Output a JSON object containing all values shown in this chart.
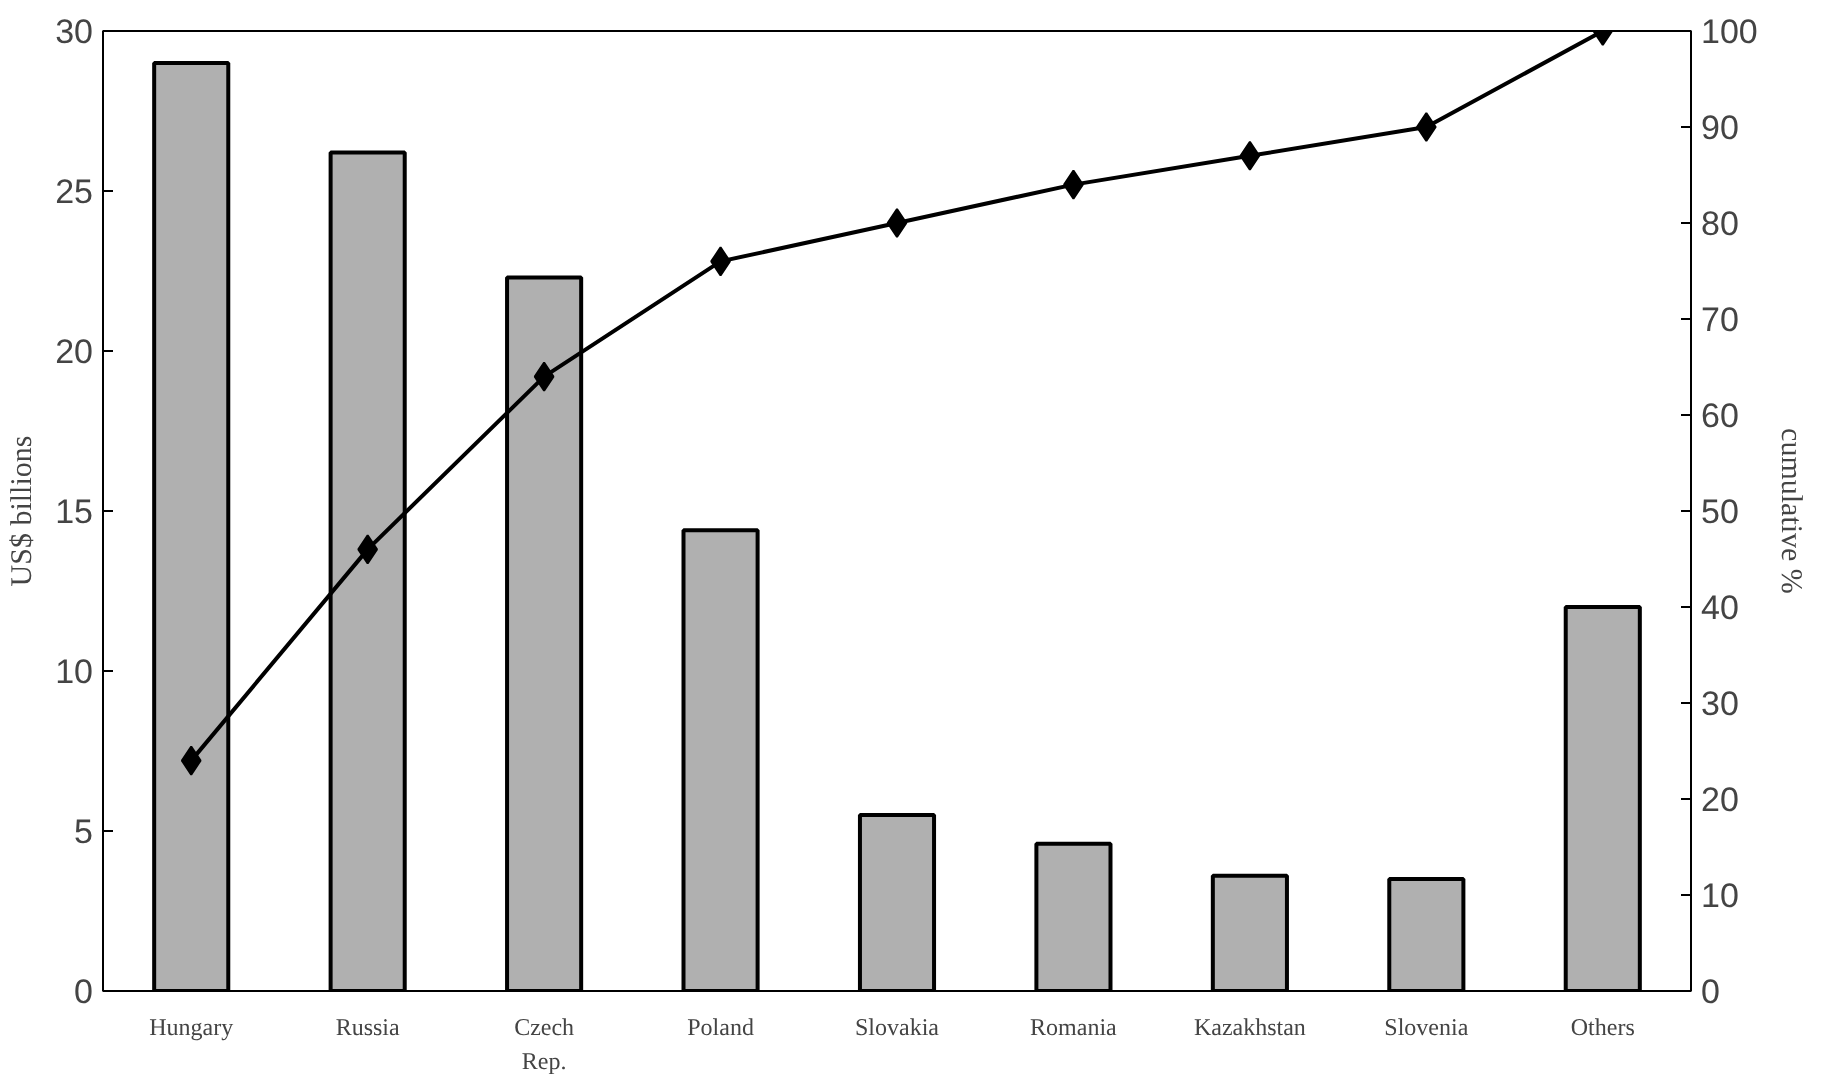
{
  "chart_data": {
    "type": "bar",
    "ylabel": "US$ billions",
    "y2label": "cumulative %",
    "categories": [
      "Hungary",
      "Russia",
      "Czech Rep.",
      "Poland",
      "Slovakia",
      "Romania",
      "Kazakhstan",
      "Slovenia",
      "Others"
    ],
    "series": [
      {
        "color": "#b0b0b0",
        "values": [
          29.0,
          26.2,
          22.3,
          14.4,
          5.5,
          4.6,
          3.6,
          3.5,
          12.0
        ]
      },
      {
        "type": "line",
        "axis": "y2",
        "color": "#000000",
        "marker": "diamond",
        "values": [
          24,
          46,
          64,
          76,
          80,
          84,
          87,
          90,
          100
        ]
      }
    ],
    "ylim": [
      0,
      30
    ],
    "yticks": [
      0,
      5,
      10,
      15,
      20,
      25,
      30
    ],
    "y2lim": [
      0,
      100
    ],
    "y2ticks": [
      0,
      10,
      20,
      30,
      40,
      50,
      60,
      70,
      80,
      90,
      100
    ],
    "grid": false
  }
}
